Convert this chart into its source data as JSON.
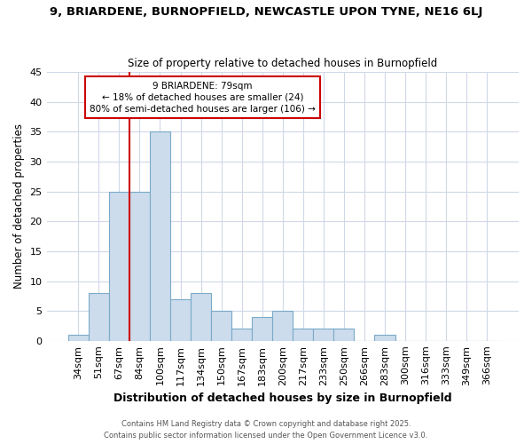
{
  "title": "9, BRIARDENE, BURNOPFIELD, NEWCASTLE UPON TYNE, NE16 6LJ",
  "subtitle": "Size of property relative to detached houses in Burnopfield",
  "xlabel": "Distribution of detached houses by size in Burnopfield",
  "ylabel": "Number of detached properties",
  "bar_labels": [
    "34sqm",
    "51sqm",
    "67sqm",
    "84sqm",
    "100sqm",
    "117sqm",
    "134sqm",
    "150sqm",
    "167sqm",
    "183sqm",
    "200sqm",
    "217sqm",
    "233sqm",
    "250sqm",
    "266sqm",
    "283sqm",
    "300sqm",
    "316sqm",
    "333sqm",
    "349sqm",
    "366sqm"
  ],
  "bar_values": [
    1,
    8,
    25,
    25,
    35,
    7,
    8,
    5,
    2,
    4,
    5,
    2,
    2,
    2,
    0,
    1,
    0,
    0,
    0,
    0,
    0
  ],
  "bar_color": "#ccdcec",
  "bar_edge_color": "#7aaac8",
  "background_color": "#ffffff",
  "grid_color": "#d0d8e8",
  "vline_x_index": 3,
  "vline_color": "#cc0000",
  "annotation_title": "9 BRIARDENE: 79sqm",
  "annotation_line1": "← 18% of detached houses are smaller (24)",
  "annotation_line2": "80% of semi-detached houses are larger (106) →",
  "annotation_box_color": "#cc0000",
  "ylim": [
    0,
    45
  ],
  "yticks": [
    0,
    5,
    10,
    15,
    20,
    25,
    30,
    35,
    40,
    45
  ],
  "footer1": "Contains HM Land Registry data © Crown copyright and database right 2025.",
  "footer2": "Contains public sector information licensed under the Open Government Licence v3.0."
}
